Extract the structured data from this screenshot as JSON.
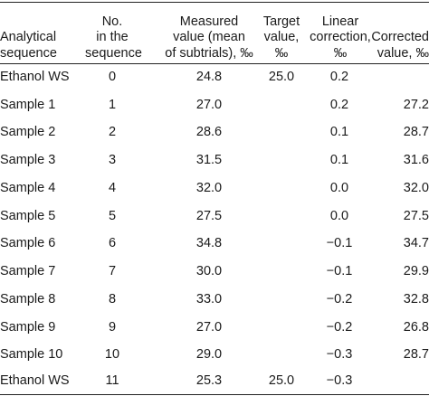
{
  "table": {
    "headers": {
      "sequence": [
        "Analytical",
        "sequence"
      ],
      "number": [
        "No.",
        "in the",
        "sequence"
      ],
      "measured": [
        "Measured",
        "value (mean",
        "of subtrials), ‰"
      ],
      "target": [
        "Target",
        "value,",
        "‰"
      ],
      "linear": [
        "Linear",
        "correction,",
        "‰"
      ],
      "corrected": [
        "Corrected",
        "value, ‰"
      ]
    },
    "rows": [
      {
        "seq": "Ethanol WS",
        "no": "0",
        "measured": "24.8",
        "target": "25.0",
        "linear": "0.2",
        "corrected": ""
      },
      {
        "seq": "Sample 1",
        "no": "1",
        "measured": "27.0",
        "target": "",
        "linear": "0.2",
        "corrected": "27.2"
      },
      {
        "seq": "Sample 2",
        "no": "2",
        "measured": "28.6",
        "target": "",
        "linear": "0.1",
        "corrected": "28.7"
      },
      {
        "seq": "Sample 3",
        "no": "3",
        "measured": "31.5",
        "target": "",
        "linear": "0.1",
        "corrected": "31.6"
      },
      {
        "seq": "Sample 4",
        "no": "4",
        "measured": "32.0",
        "target": "",
        "linear": "0.0",
        "corrected": "32.0"
      },
      {
        "seq": "Sample 5",
        "no": "5",
        "measured": "27.5",
        "target": "",
        "linear": "0.0",
        "corrected": "27.5"
      },
      {
        "seq": "Sample 6",
        "no": "6",
        "measured": "34.8",
        "target": "",
        "linear": "−0.1",
        "corrected": "34.7"
      },
      {
        "seq": "Sample 7",
        "no": "7",
        "measured": "30.0",
        "target": "",
        "linear": "−0.1",
        "corrected": "29.9"
      },
      {
        "seq": "Sample 8",
        "no": "8",
        "measured": "33.0",
        "target": "",
        "linear": "−0.2",
        "corrected": "32.8"
      },
      {
        "seq": "Sample 9",
        "no": "9",
        "measured": "27.0",
        "target": "",
        "linear": "−0.2",
        "corrected": "26.8"
      },
      {
        "seq": "Sample 10",
        "no": "10",
        "measured": "29.0",
        "target": "",
        "linear": "−0.3",
        "corrected": "28.7"
      },
      {
        "seq": "Ethanol WS",
        "no": "11",
        "measured": "25.3",
        "target": "25.0",
        "linear": "−0.3",
        "corrected": ""
      }
    ]
  }
}
